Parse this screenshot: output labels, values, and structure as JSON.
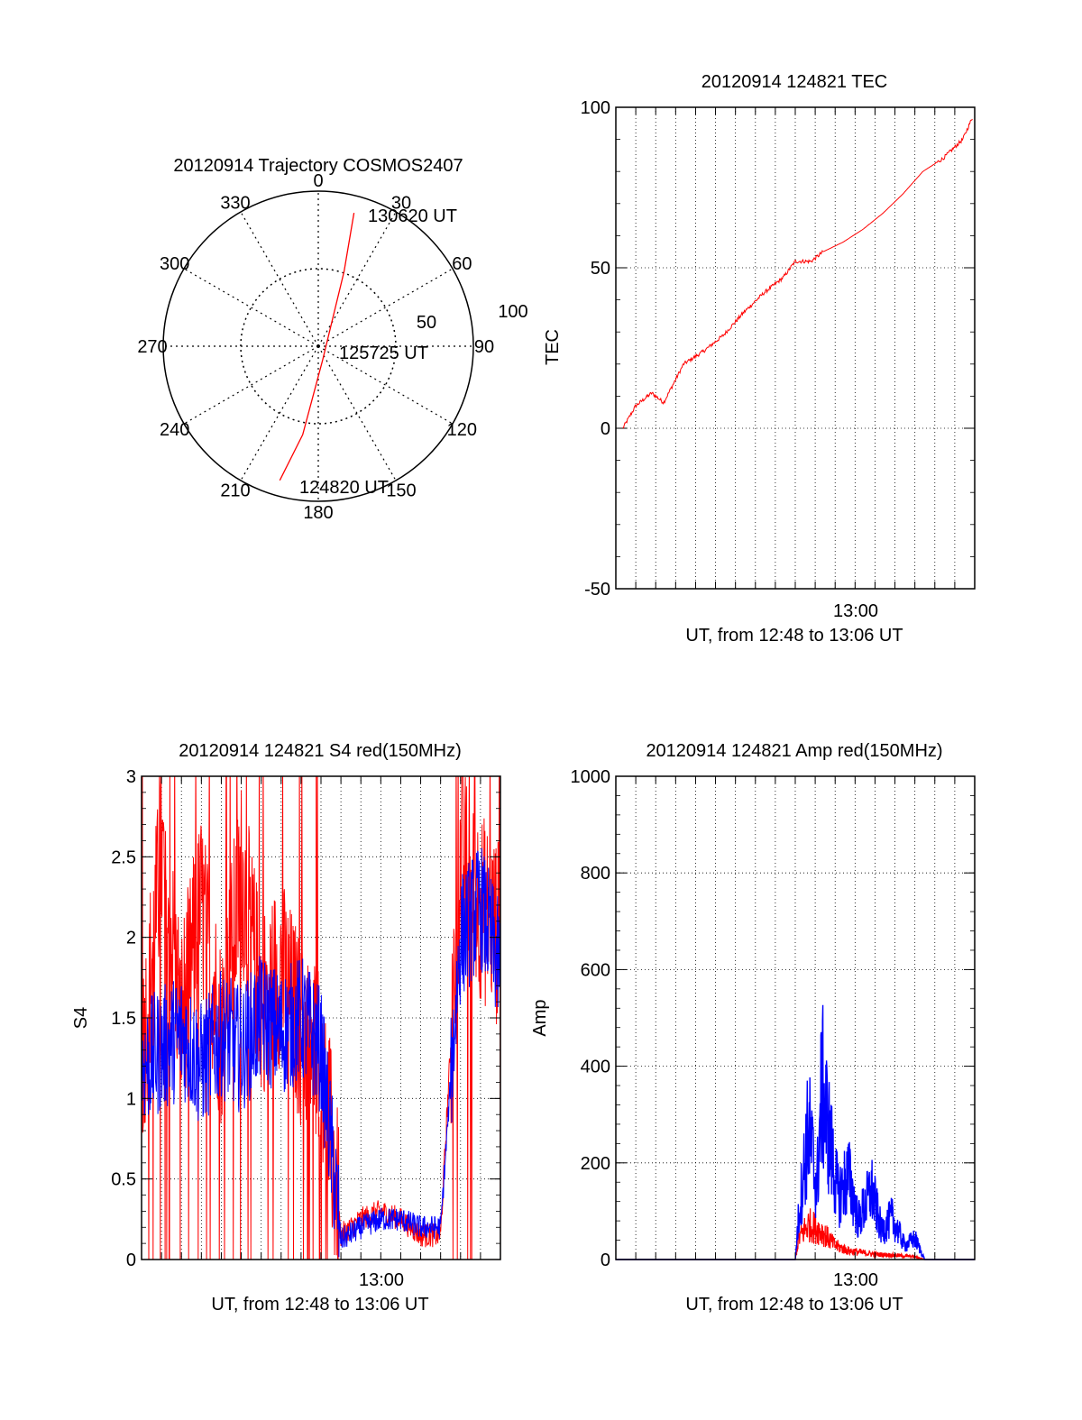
{
  "chart_data": [
    {
      "type": "polar",
      "title": "20120914 Trajectory COSMOS2407",
      "azimuth_labels": [
        "0",
        "30",
        "60",
        "90",
        "120",
        "150",
        "180",
        "210",
        "240",
        "270",
        "300",
        "330"
      ],
      "radius_labels": [
        "50",
        "100"
      ],
      "rlim": [
        0,
        100
      ],
      "grid": true,
      "annotations": [
        "130620 UT",
        "125725 UT",
        "124820 UT"
      ],
      "series": [
        {
          "color": "#ff0000",
          "points": [
            {
              "az": 196,
              "r": 90,
              "label": "124820 UT"
            },
            {
              "az": 190,
              "r": 58
            },
            {
              "az": 165,
              "r": 10,
              "label": "125725 UT"
            },
            {
              "az": 19,
              "r": 51
            },
            {
              "az": 15,
              "r": 89,
              "label": "130620 UT"
            }
          ]
        }
      ]
    },
    {
      "type": "line",
      "title": "20120914 124821 TEC",
      "xlabel": "UT, from 12:48 to 13:06 UT",
      "ylabel": "TEC",
      "xlim": [
        "12:48:00",
        "13:06:00"
      ],
      "ylim": [
        -50,
        100
      ],
      "xtick_labels": [
        "13:00"
      ],
      "ytick_labels": [
        "-50",
        "0",
        "50",
        "100"
      ],
      "grid": true,
      "series": [
        {
          "color": "#ff0000",
          "x": [
            "12:48:21",
            "12:49:00",
            "12:49:48",
            "12:50:24",
            "12:51:24",
            "12:52:24",
            "12:53:24",
            "12:54:24",
            "12:55:24",
            "12:56:24",
            "12:57:00",
            "12:57:48",
            "12:58:24",
            "12:59:24",
            "13:00:24",
            "13:01:24",
            "13:02:24",
            "13:03:24",
            "13:04:24",
            "13:05:24",
            "13:05:54"
          ],
          "values": [
            0,
            7,
            11,
            8,
            20,
            24,
            29,
            36,
            42,
            47,
            52,
            52,
            55,
            58,
            62,
            67,
            73,
            80,
            84,
            90,
            97
          ]
        }
      ]
    },
    {
      "type": "line",
      "title": "20120914 124821 S4 red(150MHz)",
      "xlabel": "UT, from 12:48 to 13:06 UT",
      "ylabel": "S4",
      "xlim": [
        "12:48:00",
        "13:06:00"
      ],
      "ylim": [
        0,
        3
      ],
      "xtick_labels": [
        "13:00"
      ],
      "ytick_labels": [
        "0",
        "0.5",
        "1",
        "1.5",
        "2",
        "2.5",
        "3"
      ],
      "grid": true,
      "series": [
        {
          "color": "#ff0000",
          "x": [
            "12:48:00",
            "12:49:00",
            "12:50:00",
            "12:51:00",
            "12:52:00",
            "12:53:00",
            "12:54:00",
            "12:55:00",
            "12:56:00",
            "12:57:00",
            "12:58:00",
            "12:59:00",
            "13:00:00",
            "13:01:00",
            "13:02:00",
            "13:03:00",
            "13:04:00",
            "13:05:00",
            "13:06:00"
          ],
          "values": [
            1.2,
            2.5,
            1.5,
            2.2,
            1.4,
            2.4,
            1.6,
            1.8,
            1.4,
            1.3,
            0.15,
            0.25,
            0.3,
            0.25,
            0.15,
            0.15,
            2.5,
            2.2,
            2.0
          ]
        },
        {
          "color": "#0000ff",
          "x": [
            "12:48:00",
            "12:49:00",
            "12:50:00",
            "12:51:00",
            "12:52:00",
            "12:53:00",
            "12:54:00",
            "12:55:00",
            "12:56:00",
            "12:57:00",
            "12:58:00",
            "12:59:00",
            "13:00:00",
            "13:01:00",
            "13:02:00",
            "13:03:00",
            "13:04:00",
            "13:05:00",
            "13:06:00"
          ],
          "values": [
            1.2,
            1.3,
            1.4,
            1.2,
            1.4,
            1.3,
            1.5,
            1.4,
            1.5,
            1.3,
            0.12,
            0.2,
            0.25,
            0.25,
            0.2,
            0.2,
            2.0,
            2.2,
            1.8
          ]
        }
      ]
    },
    {
      "type": "line",
      "title": "20120914 124821 Amp red(150MHz)",
      "xlabel": "UT, from 12:48 to 13:06 UT",
      "ylabel": "Amp",
      "xlim": [
        "12:48:00",
        "13:06:00"
      ],
      "ylim": [
        0,
        1000
      ],
      "xtick_labels": [
        "13:00"
      ],
      "ytick_labels": [
        "0",
        "200",
        "400",
        "600",
        "800",
        "1000"
      ],
      "grid": true,
      "series": [
        {
          "color": "#ff0000",
          "x": [
            "12:48:00",
            "12:57:00",
            "12:57:10",
            "12:57:40",
            "12:58:20",
            "12:59:00",
            "12:59:40",
            "13:00:20",
            "13:01:00",
            "13:02:00",
            "13:03:00",
            "13:03:30",
            "13:06:00"
          ],
          "values": [
            0,
            0,
            60,
            100,
            80,
            40,
            25,
            20,
            15,
            12,
            8,
            0,
            0
          ]
        },
        {
          "color": "#0000ff",
          "x": [
            "12:48:00",
            "12:57:00",
            "12:57:10",
            "12:57:40",
            "12:58:05",
            "12:58:20",
            "12:58:45",
            "12:59:10",
            "12:59:40",
            "13:00:10",
            "13:00:50",
            "13:01:20",
            "13:01:50",
            "13:02:30",
            "13:03:00",
            "13:03:30",
            "13:06:00"
          ],
          "values": [
            0,
            0,
            120,
            380,
            200,
            500,
            330,
            180,
            240,
            110,
            200,
            80,
            120,
            40,
            60,
            0,
            0
          ]
        }
      ]
    }
  ]
}
